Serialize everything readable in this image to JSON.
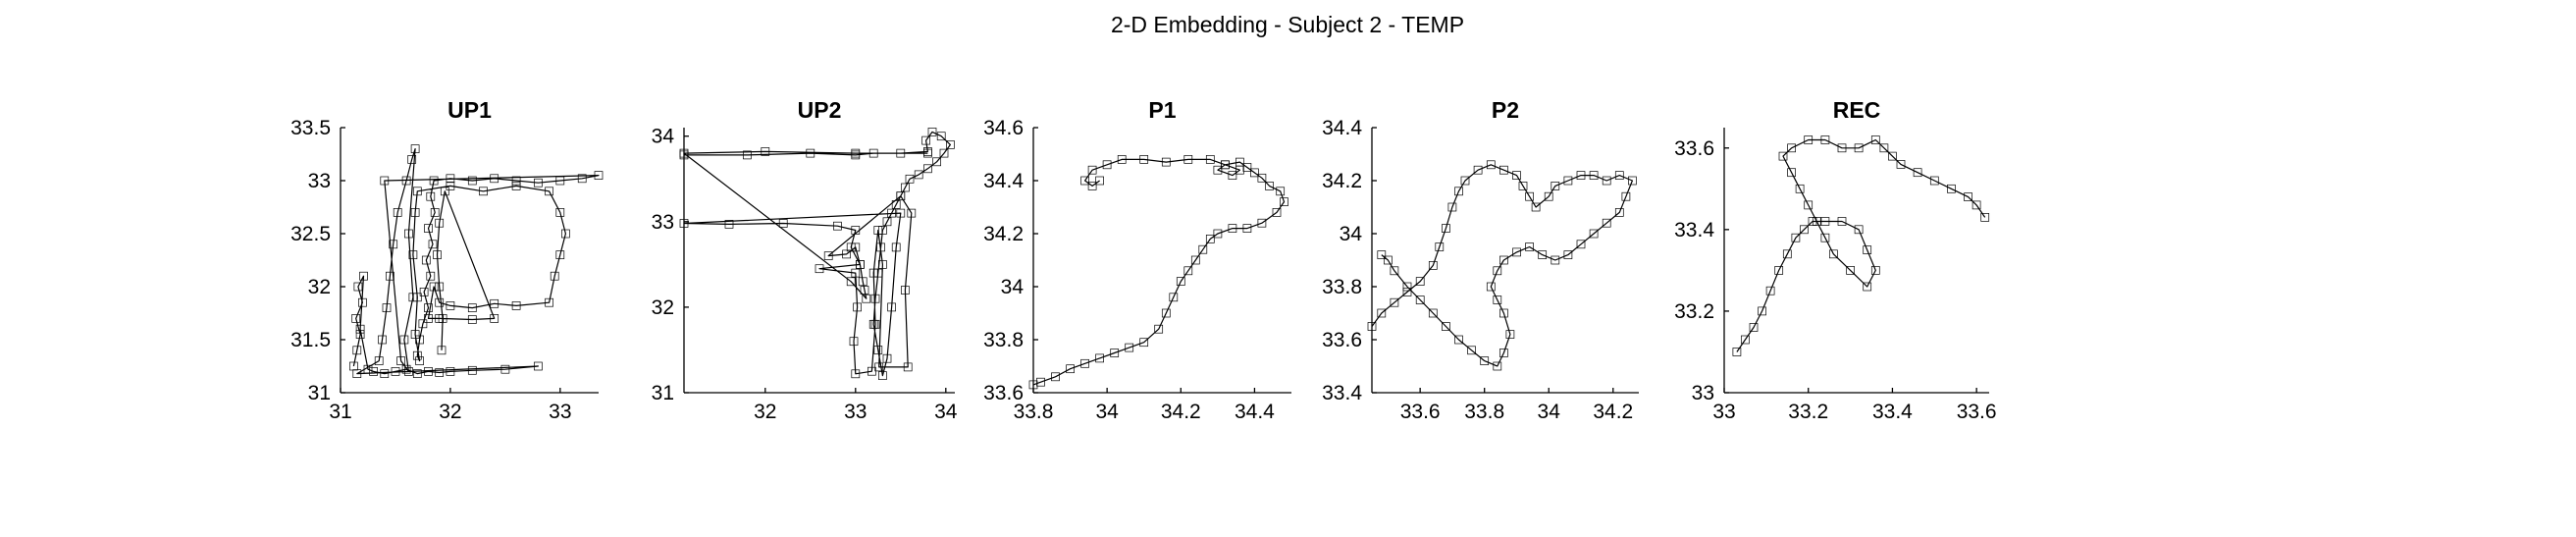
{
  "figure": {
    "title": "2-D Embedding - Subject 2 - TEMP"
  },
  "chart_data": [
    {
      "type": "line",
      "title": "UP1",
      "xlabel": "",
      "ylabel": "",
      "xlim": [
        31,
        33.35
      ],
      "ylim": [
        31,
        33.5
      ],
      "xticks": [
        31,
        32,
        33
      ],
      "xticklabels": [
        "31",
        "32",
        "33"
      ],
      "yticks": [
        31,
        31.5,
        32,
        32.5,
        33,
        33.5
      ],
      "yticklabels": [
        "31",
        "31.5",
        "32",
        "32.5",
        "33",
        "33.5"
      ],
      "grid": false,
      "series": [
        {
          "x": [
            31.12,
            31.15,
            31.18,
            31.14,
            31.2,
            31.16,
            31.21,
            31.18,
            31.25,
            31.3,
            31.4,
            31.5,
            31.6,
            31.7,
            31.8,
            31.9,
            32.0,
            32.2,
            32.5,
            32.8,
            31.15,
            31.35,
            31.38,
            31.42,
            31.45,
            31.48,
            31.52,
            31.6,
            31.65,
            31.68,
            31.62,
            31.66,
            31.58,
            31.62,
            31.55,
            31.4,
            33.35,
            33.2,
            33.0,
            32.8,
            32.6,
            32.4,
            32.2,
            32.0,
            31.85,
            31.82,
            31.86,
            31.8,
            31.84,
            31.78,
            31.82,
            31.76,
            31.8,
            31.75,
            31.72,
            31.7,
            31.72,
            31.68,
            31.7,
            31.66,
            31.68,
            31.7,
            32.0,
            32.3,
            32.6,
            32.9,
            33.0,
            33.05,
            33.0,
            32.95,
            32.9,
            32.6,
            32.4,
            32.2,
            32.0,
            31.9,
            31.85,
            31.8,
            31.9,
            32.2,
            32.4,
            31.95,
            31.9,
            31.88,
            31.9,
            31.93,
            31.92
          ],
          "y": [
            31.25,
            31.4,
            31.55,
            31.7,
            31.85,
            32.0,
            32.1,
            31.6,
            31.22,
            31.2,
            31.18,
            31.2,
            31.22,
            31.18,
            31.2,
            31.19,
            31.2,
            31.21,
            31.22,
            31.25,
            31.18,
            31.3,
            31.5,
            31.8,
            32.1,
            32.4,
            32.7,
            33.0,
            33.2,
            33.3,
            32.5,
            31.9,
            31.5,
            31.2,
            31.3,
            33.0,
            33.05,
            33.02,
            33.0,
            32.98,
            33.0,
            33.02,
            33.0,
            33.02,
            33.0,
            32.85,
            32.7,
            32.55,
            32.4,
            32.25,
            32.1,
            31.95,
            31.8,
            31.65,
            31.5,
            31.35,
            31.3,
            31.55,
            31.9,
            32.3,
            32.7,
            32.9,
            32.95,
            32.9,
            32.95,
            32.9,
            32.7,
            32.5,
            32.3,
            32.1,
            31.85,
            31.82,
            31.84,
            31.8,
            31.82,
            31.85,
            32.0,
            31.7,
            31.7,
            31.69,
            31.7,
            32.9,
            32.6,
            32.3,
            32.0,
            31.7,
            31.4
          ]
        }
      ]
    },
    {
      "type": "line",
      "title": "UP2",
      "xlabel": "",
      "ylabel": "",
      "xlim": [
        31.1,
        34.1
      ],
      "ylim": [
        31,
        34.1
      ],
      "xticks": [
        32,
        33,
        34
      ],
      "xticklabels": [
        "32",
        "33",
        "34"
      ],
      "yticks": [
        31,
        32,
        33,
        34
      ],
      "yticklabels": [
        "31",
        "32",
        "33",
        "34"
      ],
      "grid": false,
      "series": [
        {
          "x": [
            31.1,
            31.8,
            32.5,
            33.0,
            33.2,
            33.5,
            33.8,
            33.78,
            33.85,
            33.95,
            34.05,
            33.98,
            33.9,
            33.8,
            33.7,
            33.6,
            33.55,
            33.5,
            33.45,
            33.4,
            33.35,
            33.3,
            33.28,
            33.25,
            33.22,
            33.2,
            33.25,
            33.3,
            33.35,
            33.4,
            33.45,
            33.5,
            31.1,
            31.6,
            32.2,
            32.8,
            33.0,
            32.95,
            33.05,
            32.6,
            33.0,
            33.02,
            32.98,
            33.0,
            33.18,
            33.22,
            33.2,
            33.25,
            33.3,
            33.26,
            33.58,
            33.55,
            33.62,
            33.5,
            32.7,
            32.9,
            33.0,
            33.05,
            33.08,
            33.1,
            33.12,
            32.95,
            31.1,
            32.0,
            33.0,
            33.8
          ],
          "y": [
            33.78,
            33.78,
            33.8,
            33.78,
            33.8,
            33.8,
            33.82,
            33.95,
            34.05,
            34.0,
            33.9,
            33.8,
            33.7,
            33.62,
            33.55,
            33.5,
            33.4,
            33.3,
            33.2,
            33.1,
            33.0,
            32.9,
            32.7,
            32.4,
            32.1,
            31.8,
            31.5,
            31.2,
            31.4,
            32.0,
            32.7,
            33.1,
            32.98,
            32.97,
            32.98,
            32.95,
            32.9,
            32.7,
            32.5,
            32.45,
            32.4,
            32.0,
            31.6,
            31.22,
            31.25,
            31.8,
            32.4,
            32.9,
            32.5,
            31.3,
            31.3,
            32.2,
            33.1,
            33.3,
            32.6,
            32.62,
            32.7,
            32.5,
            32.3,
            32.2,
            32.1,
            32.3,
            33.8,
            33.82,
            33.8,
            33.8
          ]
        }
      ]
    },
    {
      "type": "line",
      "title": "P1",
      "xlabel": "",
      "ylabel": "",
      "xlim": [
        33.8,
        34.5
      ],
      "ylim": [
        33.6,
        34.6
      ],
      "xticks": [
        33.8,
        34,
        34.2,
        34.4
      ],
      "xticklabels": [
        "33.8",
        "34",
        "34.2",
        "34.4"
      ],
      "yticks": [
        33.6,
        33.8,
        34,
        34.2,
        34.4,
        34.6
      ],
      "yticklabels": [
        "33.6",
        "33.8",
        "34",
        "34.2",
        "34.4",
        "34.6"
      ],
      "grid": false,
      "series": [
        {
          "x": [
            33.8,
            33.82,
            33.86,
            33.9,
            33.94,
            33.98,
            34.02,
            34.06,
            34.1,
            34.14,
            34.16,
            34.18,
            34.2,
            34.22,
            34.24,
            34.26,
            34.28,
            34.3,
            34.34,
            34.38,
            34.42,
            34.46,
            34.48,
            34.47,
            34.44,
            34.42,
            34.4,
            34.38,
            34.36,
            34.32,
            34.3,
            34.34,
            34.36,
            34.32,
            34.28,
            34.22,
            34.16,
            34.1,
            34.04,
            34.0,
            33.96,
            33.94,
            33.96,
            33.98
          ],
          "y": [
            33.63,
            33.64,
            33.66,
            33.69,
            33.71,
            33.73,
            33.75,
            33.77,
            33.79,
            33.84,
            33.9,
            33.96,
            34.02,
            34.06,
            34.1,
            34.14,
            34.18,
            34.2,
            34.22,
            34.22,
            34.24,
            34.28,
            34.32,
            34.36,
            34.38,
            34.41,
            34.43,
            34.45,
            34.47,
            34.46,
            34.44,
            34.42,
            34.44,
            34.46,
            34.48,
            34.48,
            34.47,
            34.48,
            34.48,
            34.46,
            34.44,
            34.4,
            34.38,
            34.4
          ]
        }
      ]
    },
    {
      "type": "line",
      "title": "P2",
      "xlabel": "",
      "ylabel": "",
      "xlim": [
        33.45,
        34.28
      ],
      "ylim": [
        33.4,
        34.4
      ],
      "xticks": [
        33.6,
        33.8,
        34,
        34.2
      ],
      "xticklabels": [
        "33.6",
        "33.8",
        "34",
        "34.2"
      ],
      "yticks": [
        33.4,
        33.6,
        33.8,
        34,
        34.2,
        34.4
      ],
      "yticklabels": [
        "33.4",
        "33.6",
        "33.8",
        "34",
        "34.2",
        "34.4"
      ],
      "grid": false,
      "series": [
        {
          "x": [
            33.45,
            33.48,
            33.52,
            33.56,
            33.6,
            33.64,
            33.66,
            33.68,
            33.7,
            33.72,
            33.74,
            33.78,
            33.82,
            33.86,
            33.9,
            33.92,
            33.94,
            33.96,
            34.0,
            34.02,
            34.06,
            34.1,
            34.14,
            34.18,
            34.22,
            34.26,
            34.24,
            34.22,
            34.18,
            34.14,
            34.1,
            34.06,
            34.02,
            33.98,
            33.94,
            33.9,
            33.86,
            33.84,
            33.82,
            33.84,
            33.86,
            33.88,
            33.86,
            33.84,
            33.8,
            33.76,
            33.72,
            33.68,
            33.64,
            33.6,
            33.56,
            33.52,
            33.5,
            33.48
          ],
          "y": [
            33.65,
            33.7,
            33.74,
            33.78,
            33.82,
            33.88,
            33.95,
            34.02,
            34.1,
            34.16,
            34.2,
            34.24,
            34.26,
            34.24,
            34.22,
            34.18,
            34.14,
            34.1,
            34.14,
            34.18,
            34.2,
            34.22,
            34.22,
            34.2,
            34.22,
            34.2,
            34.14,
            34.08,
            34.04,
            34.0,
            33.96,
            33.92,
            33.9,
            33.92,
            33.95,
            33.93,
            33.9,
            33.86,
            33.8,
            33.75,
            33.7,
            33.62,
            33.55,
            33.5,
            33.52,
            33.56,
            33.6,
            33.65,
            33.7,
            33.75,
            33.8,
            33.86,
            33.9,
            33.92
          ]
        }
      ]
    },
    {
      "type": "line",
      "title": "REC",
      "xlabel": "",
      "ylabel": "",
      "xlim": [
        33,
        33.63
      ],
      "ylim": [
        33,
        33.65
      ],
      "xticks": [
        33,
        33.2,
        33.4,
        33.6
      ],
      "xticklabels": [
        "33",
        "33.2",
        "33.4",
        "33.6"
      ],
      "yticks": [
        33,
        33.2,
        33.4,
        33.6
      ],
      "yticklabels": [
        "33",
        "33.2",
        "33.4",
        "33.6"
      ],
      "grid": false,
      "series": [
        {
          "x": [
            33.03,
            33.05,
            33.07,
            33.09,
            33.11,
            33.13,
            33.15,
            33.17,
            33.19,
            33.21,
            33.24,
            33.28,
            33.32,
            33.34,
            33.36,
            33.34,
            33.3,
            33.26,
            33.24,
            33.22,
            33.2,
            33.18,
            33.16,
            33.14,
            33.16,
            33.2,
            33.24,
            33.28,
            33.32,
            33.36,
            33.38,
            33.4,
            33.42,
            33.46,
            33.5,
            33.54,
            33.58,
            33.6,
            33.62
          ],
          "y": [
            33.1,
            33.13,
            33.16,
            33.2,
            33.25,
            33.3,
            33.34,
            33.38,
            33.4,
            33.42,
            33.42,
            33.42,
            33.4,
            33.35,
            33.3,
            33.26,
            33.3,
            33.34,
            33.38,
            33.42,
            33.46,
            33.5,
            33.54,
            33.58,
            33.6,
            33.62,
            33.62,
            33.6,
            33.6,
            33.62,
            33.6,
            33.58,
            33.56,
            33.54,
            33.52,
            33.5,
            33.48,
            33.46,
            33.43
          ]
        }
      ]
    }
  ]
}
